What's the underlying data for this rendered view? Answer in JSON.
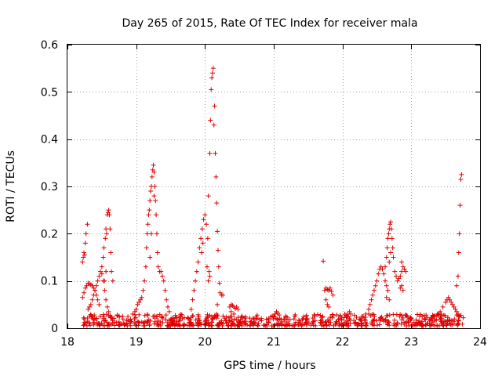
{
  "chart_data": {
    "type": "scatter",
    "title": "Day 265 of 2015, Rate Of TEC Index for receiver mala",
    "xlabel": "GPS time / hours",
    "ylabel": "ROTI / TECUs",
    "xlim": [
      18,
      24
    ],
    "ylim": [
      0,
      0.6
    ],
    "x_ticks": [
      18,
      19,
      20,
      21,
      22,
      23,
      24
    ],
    "x_tick_labels": [
      "18",
      "19",
      "20",
      "21",
      "22",
      "23",
      "24"
    ],
    "y_ticks": [
      0,
      0.1,
      0.2,
      0.3,
      0.4,
      0.5,
      0.6
    ],
    "y_tick_labels": [
      "0",
      "0.1",
      "0.2",
      "0.3",
      "0.4",
      "0.5",
      "0.6"
    ],
    "grid": true,
    "marker": "+",
    "marker_color": "#e00000",
    "series": [
      {
        "name": "ROTI",
        "points": [
          [
            18.22,
            0.14
          ],
          [
            18.23,
            0.15
          ],
          [
            18.24,
            0.16
          ],
          [
            18.25,
            0.155
          ],
          [
            18.26,
            0.18
          ],
          [
            18.27,
            0.2
          ],
          [
            18.29,
            0.22
          ],
          [
            18.22,
            0.065
          ],
          [
            18.24,
            0.075
          ],
          [
            18.26,
            0.085
          ],
          [
            18.28,
            0.09
          ],
          [
            18.3,
            0.095
          ],
          [
            18.32,
            0.095
          ],
          [
            18.34,
            0.092
          ],
          [
            18.36,
            0.09
          ],
          [
            18.38,
            0.085
          ],
          [
            18.4,
            0.08
          ],
          [
            18.42,
            0.07
          ],
          [
            18.44,
            0.06
          ],
          [
            18.46,
            0.05
          ],
          [
            18.3,
            0.04
          ],
          [
            18.32,
            0.045
          ],
          [
            18.34,
            0.05
          ],
          [
            18.36,
            0.06
          ],
          [
            18.38,
            0.07
          ],
          [
            18.4,
            0.08
          ],
          [
            18.42,
            0.09
          ],
          [
            18.44,
            0.1
          ],
          [
            18.46,
            0.11
          ],
          [
            18.48,
            0.12
          ],
          [
            18.5,
            0.115
          ],
          [
            18.52,
            0.1
          ],
          [
            18.54,
            0.08
          ],
          [
            18.56,
            0.06
          ],
          [
            18.58,
            0.045
          ],
          [
            18.6,
            0.035
          ],
          [
            18.5,
            0.13
          ],
          [
            18.52,
            0.15
          ],
          [
            18.53,
            0.17
          ],
          [
            18.55,
            0.19
          ],
          [
            18.56,
            0.21
          ],
          [
            18.57,
            0.2
          ],
          [
            18.58,
            0.24
          ],
          [
            18.59,
            0.245
          ],
          [
            18.6,
            0.25
          ],
          [
            18.61,
            0.24
          ],
          [
            18.62,
            0.21
          ],
          [
            18.63,
            0.16
          ],
          [
            18.64,
            0.12
          ],
          [
            18.66,
            0.1
          ],
          [
            18.56,
            0.12
          ],
          [
            18.54,
            0.1
          ],
          [
            18.95,
            0.03
          ],
          [
            18.98,
            0.035
          ],
          [
            19.0,
            0.04
          ],
          [
            19.02,
            0.05
          ],
          [
            19.04,
            0.055
          ],
          [
            19.06,
            0.06
          ],
          [
            19.08,
            0.065
          ],
          [
            19.1,
            0.08
          ],
          [
            19.12,
            0.1
          ],
          [
            19.14,
            0.13
          ],
          [
            19.15,
            0.17
          ],
          [
            19.16,
            0.2
          ],
          [
            19.17,
            0.22
          ],
          [
            19.18,
            0.24
          ],
          [
            19.19,
            0.25
          ],
          [
            19.2,
            0.27
          ],
          [
            19.21,
            0.29
          ],
          [
            19.22,
            0.3
          ],
          [
            19.23,
            0.32
          ],
          [
            19.24,
            0.335
          ],
          [
            19.25,
            0.345
          ],
          [
            19.26,
            0.33
          ],
          [
            19.27,
            0.3
          ],
          [
            19.28,
            0.27
          ],
          [
            19.29,
            0.24
          ],
          [
            19.3,
            0.2
          ],
          [
            19.31,
            0.16
          ],
          [
            19.32,
            0.13
          ],
          [
            19.34,
            0.12
          ],
          [
            19.36,
            0.12
          ],
          [
            19.38,
            0.11
          ],
          [
            19.4,
            0.1
          ],
          [
            19.42,
            0.08
          ],
          [
            19.44,
            0.06
          ],
          [
            19.46,
            0.045
          ],
          [
            19.48,
            0.035
          ],
          [
            19.2,
            0.15
          ],
          [
            19.22,
            0.2
          ],
          [
            19.26,
            0.28
          ],
          [
            19.8,
            0.04
          ],
          [
            19.82,
            0.06
          ],
          [
            19.84,
            0.08
          ],
          [
            19.86,
            0.1
          ],
          [
            19.88,
            0.12
          ],
          [
            19.9,
            0.14
          ],
          [
            19.92,
            0.17
          ],
          [
            19.94,
            0.19
          ],
          [
            19.96,
            0.21
          ],
          [
            19.98,
            0.23
          ],
          [
            20.0,
            0.24
          ],
          [
            20.02,
            0.22
          ],
          [
            20.04,
            0.19
          ],
          [
            20.03,
            0.13
          ],
          [
            20.05,
            0.1
          ],
          [
            20.06,
            0.12
          ],
          [
            20.07,
            0.11
          ],
          [
            19.95,
            0.16
          ],
          [
            19.97,
            0.18
          ],
          [
            20.05,
            0.28
          ],
          [
            20.07,
            0.37
          ],
          [
            20.08,
            0.44
          ],
          [
            20.09,
            0.505
          ],
          [
            20.1,
            0.53
          ],
          [
            20.11,
            0.54
          ],
          [
            20.12,
            0.55
          ],
          [
            20.13,
            0.43
          ],
          [
            20.14,
            0.47
          ],
          [
            20.15,
            0.37
          ],
          [
            20.16,
            0.32
          ],
          [
            20.17,
            0.265
          ],
          [
            20.18,
            0.205
          ],
          [
            20.19,
            0.165
          ],
          [
            20.2,
            0.13
          ],
          [
            20.21,
            0.095
          ],
          [
            20.22,
            0.075
          ],
          [
            20.24,
            0.07
          ],
          [
            20.26,
            0.07
          ],
          [
            20.18,
            0.05
          ],
          [
            20.36,
            0.045
          ],
          [
            20.38,
            0.05
          ],
          [
            20.4,
            0.048
          ],
          [
            20.42,
            0.045
          ],
          [
            20.44,
            0.042
          ],
          [
            20.46,
            0.045
          ],
          [
            20.48,
            0.04
          ],
          [
            20.38,
            0.035
          ],
          [
            20.42,
            0.03
          ],
          [
            21.0,
            0.025
          ],
          [
            21.02,
            0.03
          ],
          [
            21.04,
            0.035
          ],
          [
            21.06,
            0.032
          ],
          [
            21.08,
            0.028
          ],
          [
            21.72,
            0.142
          ],
          [
            21.74,
            0.08
          ],
          [
            21.76,
            0.085
          ],
          [
            21.78,
            0.082
          ],
          [
            21.8,
            0.08
          ],
          [
            21.82,
            0.085
          ],
          [
            21.84,
            0.078
          ],
          [
            21.86,
            0.07
          ],
          [
            21.76,
            0.06
          ],
          [
            21.78,
            0.05
          ],
          [
            21.8,
            0.045
          ],
          [
            22.1,
            0.035
          ],
          [
            22.12,
            0.03
          ],
          [
            22.3,
            0.025
          ],
          [
            22.34,
            0.03
          ],
          [
            22.38,
            0.04
          ],
          [
            22.4,
            0.05
          ],
          [
            22.42,
            0.06
          ],
          [
            22.44,
            0.07
          ],
          [
            22.46,
            0.08
          ],
          [
            22.48,
            0.09
          ],
          [
            22.5,
            0.1
          ],
          [
            22.52,
            0.115
          ],
          [
            22.54,
            0.125
          ],
          [
            22.56,
            0.13
          ],
          [
            22.58,
            0.125
          ],
          [
            22.6,
            0.115
          ],
          [
            22.62,
            0.1
          ],
          [
            22.64,
            0.09
          ],
          [
            22.66,
            0.08
          ],
          [
            22.64,
            0.065
          ],
          [
            22.68,
            0.06
          ],
          [
            22.62,
            0.13
          ],
          [
            22.64,
            0.15
          ],
          [
            22.65,
            0.17
          ],
          [
            22.66,
            0.19
          ],
          [
            22.67,
            0.2
          ],
          [
            22.68,
            0.21
          ],
          [
            22.69,
            0.22
          ],
          [
            22.7,
            0.225
          ],
          [
            22.71,
            0.21
          ],
          [
            22.72,
            0.19
          ],
          [
            22.73,
            0.17
          ],
          [
            22.74,
            0.15
          ],
          [
            22.7,
            0.16
          ],
          [
            22.68,
            0.14
          ],
          [
            22.76,
            0.12
          ],
          [
            22.78,
            0.11
          ],
          [
            22.8,
            0.1
          ],
          [
            22.82,
            0.105
          ],
          [
            22.84,
            0.11
          ],
          [
            22.86,
            0.12
          ],
          [
            22.88,
            0.13
          ],
          [
            22.9,
            0.125
          ],
          [
            22.92,
            0.12
          ],
          [
            22.84,
            0.085
          ],
          [
            22.86,
            0.09
          ],
          [
            22.88,
            0.08
          ],
          [
            22.86,
            0.14
          ],
          [
            23.3,
            0.02
          ],
          [
            23.34,
            0.025
          ],
          [
            23.38,
            0.03
          ],
          [
            23.42,
            0.035
          ],
          [
            23.46,
            0.045
          ],
          [
            23.5,
            0.055
          ],
          [
            23.52,
            0.06
          ],
          [
            23.54,
            0.065
          ],
          [
            23.56,
            0.06
          ],
          [
            23.58,
            0.055
          ],
          [
            23.6,
            0.05
          ],
          [
            23.62,
            0.045
          ],
          [
            23.64,
            0.04
          ],
          [
            23.66,
            0.035
          ],
          [
            23.68,
            0.03
          ],
          [
            23.7,
            0.025
          ],
          [
            23.66,
            0.09
          ],
          [
            23.68,
            0.11
          ],
          [
            23.69,
            0.16
          ],
          [
            23.7,
            0.2
          ],
          [
            23.71,
            0.26
          ],
          [
            23.72,
            0.315
          ],
          [
            23.73,
            0.325
          ]
        ]
      }
    ],
    "baseline_noise": {
      "x_range": [
        18.22,
        23.76
      ],
      "y_range": [
        0.005,
        0.03
      ],
      "description_value_count": 700
    }
  }
}
